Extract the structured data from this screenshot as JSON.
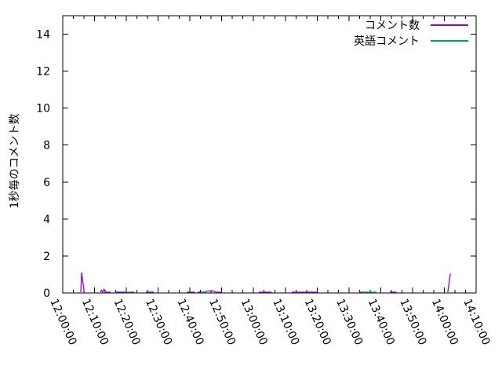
{
  "figure": {
    "background": "#ffffff",
    "border_color": "#000000",
    "text_color": "#000000"
  },
  "chart_data": {
    "type": "line",
    "title": "",
    "xlabel": "",
    "ylabel": "1秒毎のコメント数",
    "xlim": [
      "12:00:00",
      "14:10:00"
    ],
    "ylim": [
      0,
      15
    ],
    "y_ticks": [
      0,
      2,
      4,
      6,
      8,
      10,
      12,
      14
    ],
    "x_tick_labels": [
      "12:00:00",
      "12:10:00",
      "12:20:00",
      "12:30:00",
      "12:40:00",
      "12:50:00",
      "13:00:00",
      "13:10:00",
      "13:20:00",
      "13:30:00",
      "13:40:00",
      "13:50:00",
      "14:00:00",
      "14:10:00"
    ],
    "x_minor_tick_seconds": 200,
    "x_major_tick_seconds": 600,
    "grid": false,
    "legend_position": "top-right-inside",
    "series": [
      {
        "name": "コメント数",
        "color": "#9400d3",
        "segments": [
          [
            [
              "12:05:40",
              0
            ],
            [
              "12:05:55",
              1.1
            ],
            [
              "12:06:45",
              0
            ]
          ],
          [
            [
              "12:11:50",
              0
            ],
            [
              "12:12:10",
              0.15
            ],
            [
              "12:12:30",
              0
            ],
            [
              "12:13:00",
              0.2
            ],
            [
              "12:13:20",
              0
            ],
            [
              "12:15:00",
              0
            ]
          ],
          [
            [
              "12:16:30",
              0
            ],
            [
              "12:19:45",
              0
            ]
          ],
          [
            [
              "12:21:15",
              0
            ],
            [
              "12:22:30",
              0
            ]
          ],
          [
            [
              "12:26:10",
              0
            ],
            [
              "12:28:40",
              0
            ]
          ],
          [
            [
              "12:39:00",
              0
            ],
            [
              "12:41:30",
              0
            ]
          ],
          [
            [
              "12:42:30",
              0
            ],
            [
              "12:44:50",
              0
            ],
            [
              "12:45:10",
              0.1
            ],
            [
              "12:47:40",
              0.1
            ],
            [
              "12:48:00",
              0
            ],
            [
              "12:50:00",
              0
            ]
          ],
          [
            [
              "13:01:40",
              0
            ],
            [
              "13:05:40",
              0
            ]
          ],
          [
            [
              "13:12:00",
              0
            ],
            [
              "13:20:00",
              0
            ]
          ],
          [
            [
              "13:33:15",
              0
            ],
            [
              "13:35:45",
              0
            ]
          ],
          [
            [
              "13:42:50",
              0
            ],
            [
              "13:45:00",
              0
            ]
          ],
          [
            [
              "14:01:05",
              0
            ],
            [
              "14:01:55",
              1.05
            ]
          ]
        ]
      },
      {
        "name": "英語コメント",
        "color": "#009e73",
        "segments": [
          [
            [
              "12:19:45",
              0
            ],
            [
              "12:21:15",
              0
            ]
          ],
          [
            [
              "12:43:30",
              0
            ],
            [
              "12:45:00",
              0
            ]
          ],
          [
            [
              "13:34:15",
              0
            ],
            [
              "13:38:40",
              0
            ]
          ]
        ]
      }
    ]
  }
}
